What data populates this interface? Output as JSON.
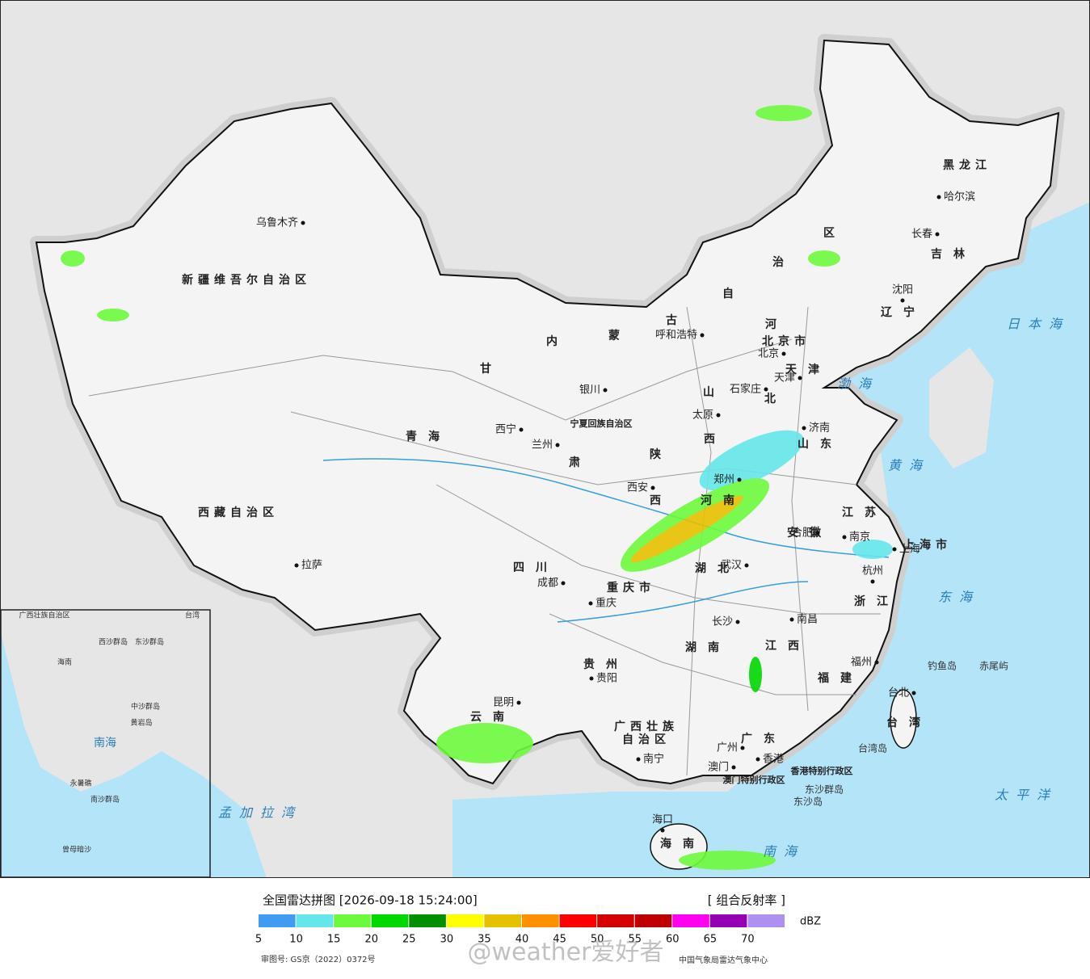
{
  "map": {
    "provinces": [
      "新疆维吾尔自治区",
      "西藏自治区",
      "青海",
      "甘",
      "肃",
      "内",
      "蒙",
      "古",
      "自",
      "治",
      "区",
      "黑龙江",
      "吉林",
      "辽宁",
      "河",
      "北",
      "山",
      "西",
      "山东",
      "宁夏回族自治区",
      "陕",
      "西",
      "河南",
      "四川",
      "重庆市",
      "湖北",
      "安徽",
      "江苏",
      "上海市",
      "浙江",
      "江西",
      "湖南",
      "贵州",
      "云南",
      "福建",
      "广西壮族",
      "自治区",
      "广东",
      "台湾",
      "海南",
      "北京市",
      "天津",
      "香港特别行政区",
      "澳门特别行政区"
    ],
    "cities": [
      "乌鲁木齐",
      "拉萨",
      "西宁",
      "兰州",
      "银川",
      "呼和浩特",
      "北京",
      "天津",
      "石家庄",
      "太原",
      "济南",
      "郑州",
      "西安",
      "合肥",
      "南京",
      "上海",
      "杭州",
      "武汉",
      "成都",
      "重庆",
      "长沙",
      "南昌",
      "贵阳",
      "福州",
      "台北",
      "昆明",
      "南宁",
      "广州",
      "澳门",
      "香港",
      "海口",
      "哈尔滨",
      "长春",
      "沈阳"
    ],
    "islands": [
      "钓鱼岛",
      "赤尾屿",
      "台湾岛",
      "东沙群岛",
      "东沙岛"
    ],
    "seas": [
      "日本海",
      "渤海",
      "黄海",
      "东海",
      "太平洋",
      "南海",
      "孟加拉湾"
    ],
    "inset_labels": [
      "南海",
      "中沙群岛",
      "黄岩岛",
      "南沙群岛",
      "曾母暗沙",
      "永暑礁",
      "西沙群岛",
      "东沙群岛",
      "海南",
      "台湾",
      "广西壮族自治区"
    ]
  },
  "legend": {
    "title": "全国雷达拼图 [2026-09-18 15:24:00]",
    "product": "[ 组合反射率 ]",
    "unit": "dBZ",
    "colors": [
      "#419bf0",
      "#64e7eb",
      "#6dfa3d",
      "#00d800",
      "#019000",
      "#ffff00",
      "#e7c000",
      "#ff9000",
      "#ff0000",
      "#d60000",
      "#c00000",
      "#ff00f0",
      "#9600b4",
      "#ad90f0"
    ],
    "ticks": [
      5,
      10,
      15,
      20,
      25,
      30,
      35,
      40,
      45,
      50,
      55,
      60,
      65,
      70
    ]
  },
  "footer": {
    "review_number": "审图号: GS京（2022）0372号",
    "source": "中国气象局雷达气象中心",
    "watermark": "@weather爱好者"
  }
}
